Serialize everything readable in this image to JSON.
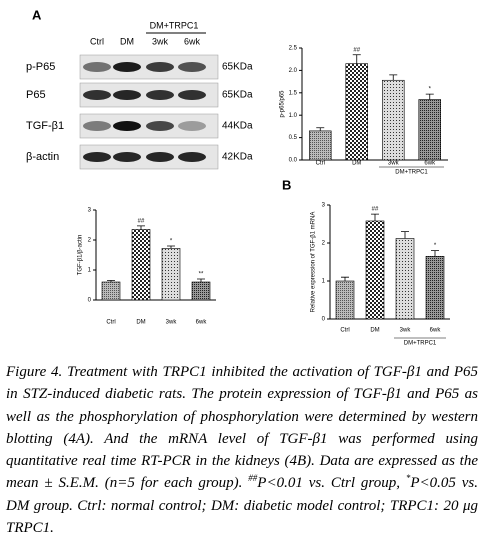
{
  "panel_labels": [
    "A",
    "B"
  ],
  "blot": {
    "lanes": [
      "Ctrl",
      "DM",
      "3wk",
      "6wk"
    ],
    "group_label": "DM+TRPC1",
    "rows": [
      {
        "name": "p-P65",
        "size": "65KDa"
      },
      {
        "name": "P65",
        "size": "65KDa"
      },
      {
        "name": "TGF-β1",
        "size": "44KDa"
      },
      {
        "name": "β-actin",
        "size": "42KDa"
      }
    ]
  },
  "chart_data": [
    {
      "type": "bar",
      "y_label": "p-p65/p65",
      "categories": [
        "Ctrl",
        "DM",
        "3wk",
        "6wk"
      ],
      "group_label": "DM+TRPC1",
      "values": [
        0.65,
        2.15,
        1.78,
        1.35
      ],
      "errors": [
        0.07,
        0.2,
        0.12,
        0.12
      ],
      "annotations": [
        null,
        "##",
        null,
        "*"
      ],
      "ylim": [
        0,
        2.5
      ],
      "yticks": [
        {
          "value": 0,
          "label": "0.0"
        },
        {
          "value": 0.5,
          "label": "0.5"
        },
        {
          "value": 1,
          "label": "1.0"
        },
        {
          "value": 1.5,
          "label": "1.5"
        },
        {
          "value": 2,
          "label": "2.0"
        },
        {
          "value": 2.5,
          "label": "2.5"
        }
      ]
    },
    {
      "type": "bar",
      "y_label": "TGF-β1/β-actin",
      "categories": [
        "Ctrl",
        "DM",
        "3wk",
        "6wk"
      ],
      "values": [
        0.6,
        2.35,
        1.72,
        0.6
      ],
      "errors": [
        0.05,
        0.12,
        0.08,
        0.1
      ],
      "annotations": [
        null,
        "##",
        "*",
        "**"
      ],
      "ylim": [
        0,
        3
      ],
      "yticks": [
        0,
        1,
        2,
        3
      ]
    },
    {
      "type": "bar",
      "y_label": "Relative expression of TGF-β1 mRNA",
      "categories": [
        "Ctrl",
        "DM",
        "3wk",
        "6wk"
      ],
      "group_label": "DM+TRPC1",
      "values": [
        1.0,
        2.58,
        2.12,
        1.65
      ],
      "errors": [
        0.1,
        0.18,
        0.18,
        0.15
      ],
      "annotations": [
        null,
        "##",
        null,
        "*"
      ],
      "ylim": [
        0,
        3
      ],
      "yticks": [
        0,
        1,
        2,
        3
      ]
    }
  ],
  "caption": [
    "Figure 4. Treatment with TRPC1 inhibited the activation of TGF-β1 and P65 in STZ-induced diabetic rats. The protein expression of TGF-β1 and P65 as well as the phosphorylation of phosphorylation were determined by western blotting (4A). And the mRNA level of TGF-β1 was performed using quantitative real time RT-PCR in the kidneys (4B). Data are expressed as the mean ± S.E.M. (n=5 for each group). ",
    "##",
    "P<0.01 vs. Ctrl group, ",
    "*",
    "P<0.05 vs. DM group. Ctrl: normal control; DM: diabetic model control; TRPC1: 20 μg TRPC1."
  ]
}
